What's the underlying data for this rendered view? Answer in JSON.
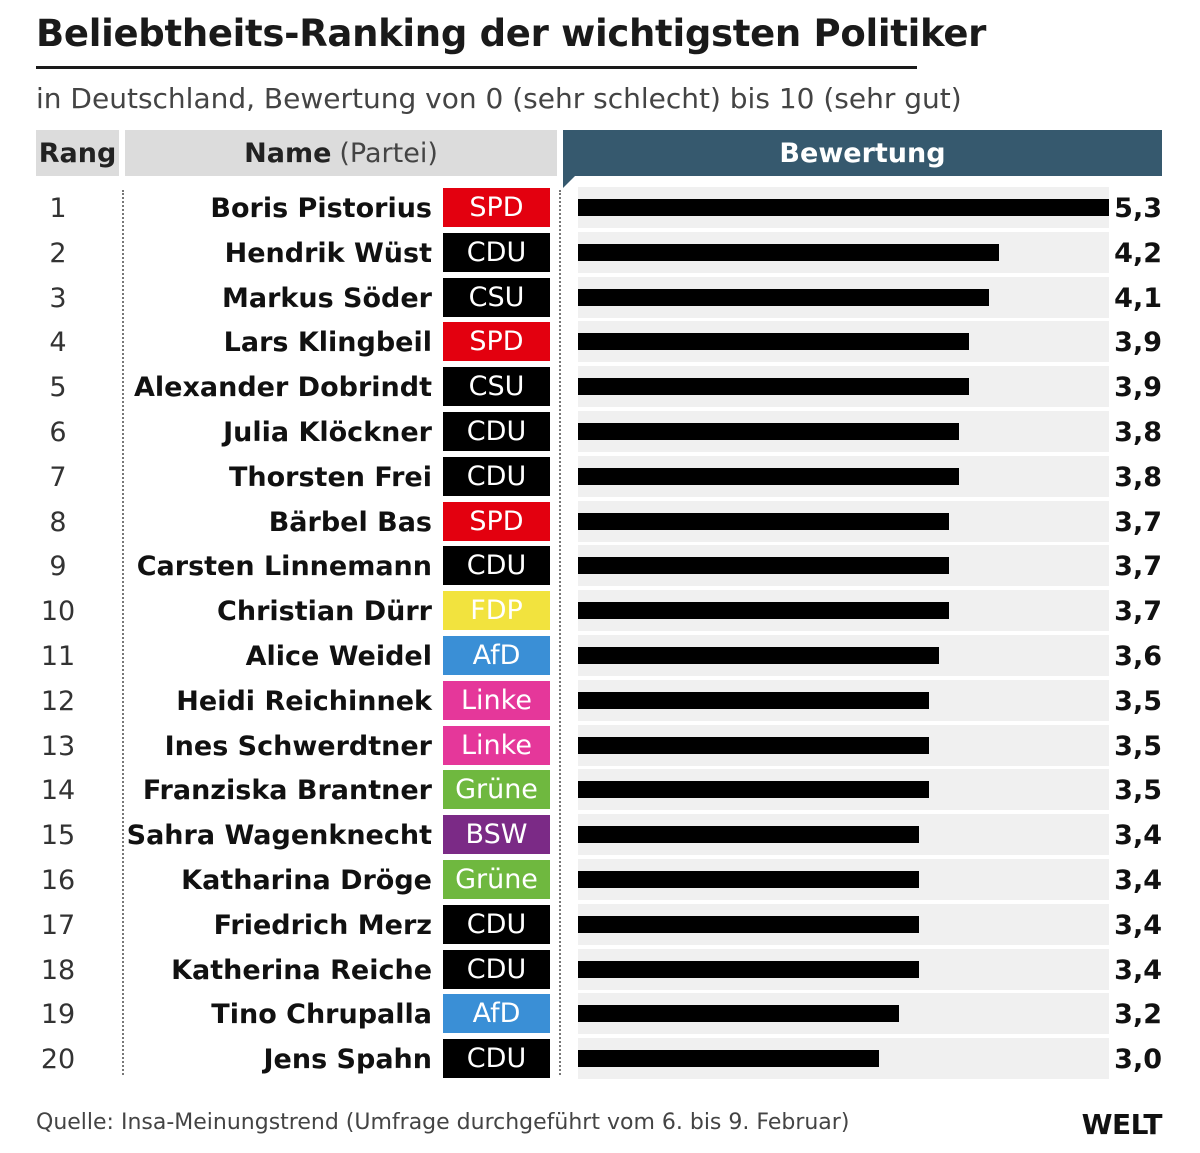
{
  "header": {
    "title": "Beliebtheits-Ranking der wichtigsten Politiker",
    "subtitle": "in Deutschland, Bewertung von 0 (sehr schlecht) bis 10 (sehr gut)"
  },
  "columns": {
    "rang": "Rang",
    "name": "Name",
    "partei": "(Partei)",
    "bewertung": "Bewertung"
  },
  "party_colors": {
    "SPD": "#e3000f",
    "CDU": "#000000",
    "CSU": "#000000",
    "FDP": "#f2e33e",
    "AfD": "#3a8fd6",
    "Linke": "#e5379a",
    "Grüne": "#6fb83f",
    "BSW": "#7b2a86"
  },
  "chart_data": {
    "type": "bar",
    "orientation": "horizontal",
    "title": "Beliebtheits-Ranking der wichtigsten Politiker",
    "subtitle": "in Deutschland, Bewertung von 0 (sehr schlecht) bis 10 (sehr gut)",
    "xlim": [
      0,
      5.3
    ],
    "grid": false,
    "rows": [
      {
        "rank": "1",
        "name": "Boris Pistorius",
        "party": "SPD",
        "value": 5.3,
        "label": "5,3"
      },
      {
        "rank": "2",
        "name": "Hendrik Wüst",
        "party": "CDU",
        "value": 4.2,
        "label": "4,2"
      },
      {
        "rank": "3",
        "name": "Markus Söder",
        "party": "CSU",
        "value": 4.1,
        "label": "4,1"
      },
      {
        "rank": "4",
        "name": "Lars Klingbeil",
        "party": "SPD",
        "value": 3.9,
        "label": "3,9"
      },
      {
        "rank": "5",
        "name": "Alexander Dobrindt",
        "party": "CSU",
        "value": 3.9,
        "label": "3,9"
      },
      {
        "rank": "6",
        "name": "Julia Klöckner",
        "party": "CDU",
        "value": 3.8,
        "label": "3,8"
      },
      {
        "rank": "7",
        "name": "Thorsten Frei",
        "party": "CDU",
        "value": 3.8,
        "label": "3,8"
      },
      {
        "rank": "8",
        "name": "Bärbel Bas",
        "party": "SPD",
        "value": 3.7,
        "label": "3,7"
      },
      {
        "rank": "9",
        "name": "Carsten Linnemann",
        "party": "CDU",
        "value": 3.7,
        "label": "3,7"
      },
      {
        "rank": "10",
        "name": "Christian Dürr",
        "party": "FDP",
        "value": 3.7,
        "label": "3,7"
      },
      {
        "rank": "11",
        "name": "Alice Weidel",
        "party": "AfD",
        "value": 3.6,
        "label": "3,6"
      },
      {
        "rank": "12",
        "name": "Heidi Reichinnek",
        "party": "Linke",
        "value": 3.5,
        "label": "3,5"
      },
      {
        "rank": "13",
        "name": "Ines Schwerdtner",
        "party": "Linke",
        "value": 3.5,
        "label": "3,5"
      },
      {
        "rank": "14",
        "name": "Franziska Brantner",
        "party": "Grüne",
        "value": 3.5,
        "label": "3,5"
      },
      {
        "rank": "15",
        "name": "Sahra Wagenknecht",
        "party": "BSW",
        "value": 3.4,
        "label": "3,4"
      },
      {
        "rank": "16",
        "name": "Katharina Dröge",
        "party": "Grüne",
        "value": 3.4,
        "label": "3,4"
      },
      {
        "rank": "17",
        "name": "Friedrich Merz",
        "party": "CDU",
        "value": 3.4,
        "label": "3,4"
      },
      {
        "rank": "18",
        "name": "Katherina Reiche",
        "party": "CDU",
        "value": 3.4,
        "label": "3,4"
      },
      {
        "rank": "19",
        "name": "Tino Chrupalla",
        "party": "AfD",
        "value": 3.2,
        "label": "3,2"
      },
      {
        "rank": "20",
        "name": "Jens Spahn",
        "party": "CDU",
        "value": 3.0,
        "label": "3,0"
      }
    ]
  },
  "footer": {
    "source": "Quelle: Insa-Meinungstrend (Umfrage durchgeführt vom 6. bis 9. Februar)",
    "logo": "WELT"
  }
}
